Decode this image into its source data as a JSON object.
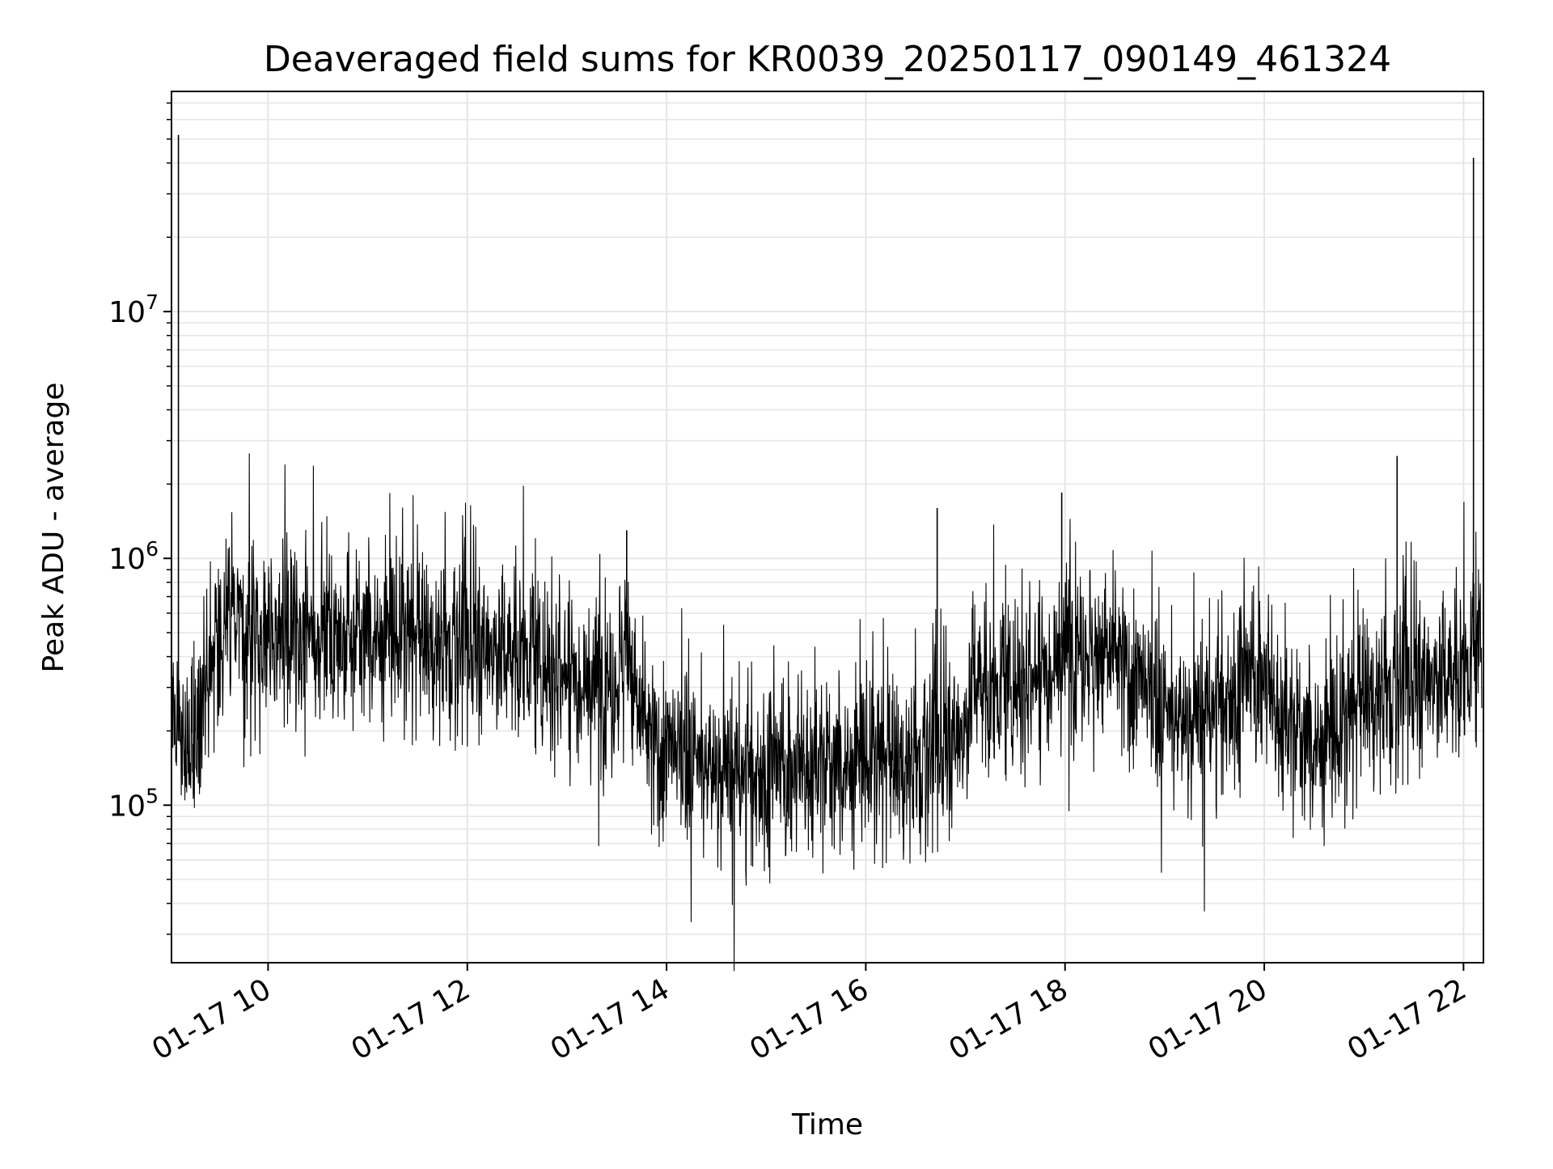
{
  "chart_data": {
    "type": "line",
    "title": "Deaveraged field sums for KR0039_20250117_090149_461324",
    "xlabel": "Time",
    "ylabel": "Peak ADU - average",
    "x_scale": "time",
    "y_scale": "log",
    "xlim": [
      "2025-01-17T09:01:49",
      "2025-01-17T22:12:00"
    ],
    "ylim": [
      23000,
      78000000
    ],
    "grid": true,
    "legend": "none",
    "colors": {
      "line": "#000000",
      "grid": "#e6e6e6",
      "frame": "#000000",
      "background": "#ffffff"
    },
    "x_ticks": [
      {
        "value": "2025-01-17T10:00:00",
        "label": "01-17 10"
      },
      {
        "value": "2025-01-17T12:00:00",
        "label": "01-17 12"
      },
      {
        "value": "2025-01-17T14:00:00",
        "label": "01-17 14"
      },
      {
        "value": "2025-01-17T16:00:00",
        "label": "01-17 16"
      },
      {
        "value": "2025-01-17T18:00:00",
        "label": "01-17 18"
      },
      {
        "value": "2025-01-17T20:00:00",
        "label": "01-17 20"
      },
      {
        "value": "2025-01-17T22:00:00",
        "label": "01-17 22"
      }
    ],
    "y_ticks": [
      {
        "value": 100000,
        "base": "10",
        "exp": "5"
      },
      {
        "value": 1000000,
        "base": "10",
        "exp": "6"
      },
      {
        "value": 10000000,
        "base": "10",
        "exp": "7"
      }
    ],
    "series": [
      {
        "color": "#000000",
        "x": [
          "2025-01-17T09:02",
          "2025-01-17T09:05",
          "2025-01-17T09:07",
          "2025-01-17T09:10",
          "2025-01-17T09:13",
          "2025-01-17T09:20",
          "2025-01-17T09:30",
          "2025-01-17T09:40",
          "2025-01-17T09:50",
          "2025-01-17T10:00",
          "2025-01-17T10:15",
          "2025-01-17T10:30",
          "2025-01-17T10:45",
          "2025-01-17T11:00",
          "2025-01-17T11:15",
          "2025-01-17T11:30",
          "2025-01-17T11:45",
          "2025-01-17T12:00",
          "2025-01-17T12:15",
          "2025-01-17T12:30",
          "2025-01-17T12:45",
          "2025-01-17T13:00",
          "2025-01-17T13:15",
          "2025-01-17T13:30",
          "2025-01-17T13:36",
          "2025-01-17T13:40",
          "2025-01-17T13:50",
          "2025-01-17T14:00",
          "2025-01-17T14:15",
          "2025-01-17T14:30",
          "2025-01-17T14:45",
          "2025-01-17T15:00",
          "2025-01-17T15:15",
          "2025-01-17T15:30",
          "2025-01-17T15:45",
          "2025-01-17T16:00",
          "2025-01-17T16:15",
          "2025-01-17T16:30",
          "2025-01-17T16:45",
          "2025-01-17T16:50",
          "2025-01-17T17:00",
          "2025-01-17T17:05",
          "2025-01-17T17:15",
          "2025-01-17T17:30",
          "2025-01-17T17:45",
          "2025-01-17T18:00",
          "2025-01-17T18:15",
          "2025-01-17T18:30",
          "2025-01-17T18:45",
          "2025-01-17T19:00",
          "2025-01-17T19:15",
          "2025-01-17T19:30",
          "2025-01-17T19:45",
          "2025-01-17T20:00",
          "2025-01-17T20:05",
          "2025-01-17T20:15",
          "2025-01-17T20:30",
          "2025-01-17T20:45",
          "2025-01-17T21:00",
          "2025-01-17T21:15",
          "2025-01-17T21:30",
          "2025-01-17T21:45",
          "2025-01-17T22:00",
          "2025-01-17T22:06",
          "2025-01-17T22:11"
        ],
        "y": [
          300000,
          200000,
          250000,
          150000,
          200000,
          280000,
          450000,
          520000,
          500000,
          480000,
          520000,
          500000,
          480000,
          500000,
          480000,
          470000,
          460000,
          450000,
          430000,
          420000,
          380000,
          350000,
          330000,
          300000,
          550000,
          280000,
          180000,
          160000,
          150000,
          140000,
          130000,
          135000,
          140000,
          140000,
          145000,
          150000,
          150000,
          155000,
          170000,
          180000,
          200000,
          350000,
          280000,
          320000,
          350000,
          450000,
          420000,
          400000,
          300000,
          230000,
          220000,
          240000,
          300000,
          350000,
          250000,
          200000,
          180000,
          190000,
          280000,
          300000,
          320000,
          330000,
          350000,
          400000,
          450000
        ]
      }
    ],
    "spikes": [
      {
        "x": "2025-01-17T09:06",
        "y": 52000000
      },
      {
        "x": "2025-01-17T22:06",
        "y": 42000000
      },
      {
        "x": "2025-01-17T13:36",
        "y": 1300000
      },
      {
        "x": "2025-01-17T16:43",
        "y": 1600000
      },
      {
        "x": "2025-01-17T17:58",
        "y": 1850000
      },
      {
        "x": "2025-01-17T21:20",
        "y": 2600000
      }
    ]
  }
}
